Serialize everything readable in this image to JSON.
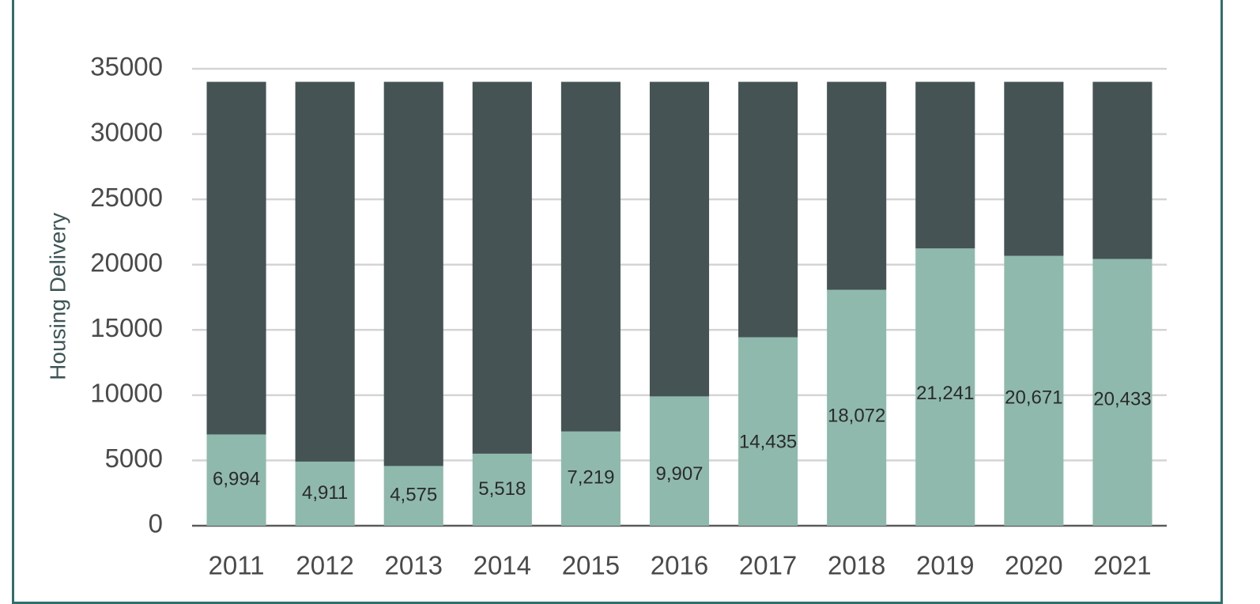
{
  "chart_data": {
    "type": "bar",
    "stacked": true,
    "ylabel": "Housing Delivery",
    "ylim": [
      0,
      35000
    ],
    "yticks": [
      0,
      5000,
      10000,
      15000,
      20000,
      25000,
      30000,
      35000
    ],
    "grid": true,
    "categories": [
      "2011",
      "2012",
      "2013",
      "2014",
      "2015",
      "2016",
      "2017",
      "2018",
      "2019",
      "2020",
      "2021"
    ],
    "series": [
      {
        "values": [
          6994,
          4911,
          4575,
          5518,
          7219,
          9907,
          14435,
          18072,
          21241,
          20671,
          20433
        ],
        "labels": [
          "6,994",
          "4,911",
          "4,575",
          "5,518",
          "7,219",
          "9,907",
          "14,435",
          "18,072",
          "21,241",
          "20,671",
          "20,433"
        ],
        "color": "#8fb9ac"
      },
      {
        "values": [
          27006,
          29089,
          29425,
          28482,
          26781,
          24093,
          19565,
          15928,
          12759,
          13329,
          13567
        ],
        "color": "#455354"
      }
    ]
  },
  "colors": {
    "frame": "#2f6f6b",
    "grid": "#d4d4d4",
    "axis": "#5a5a5a"
  }
}
